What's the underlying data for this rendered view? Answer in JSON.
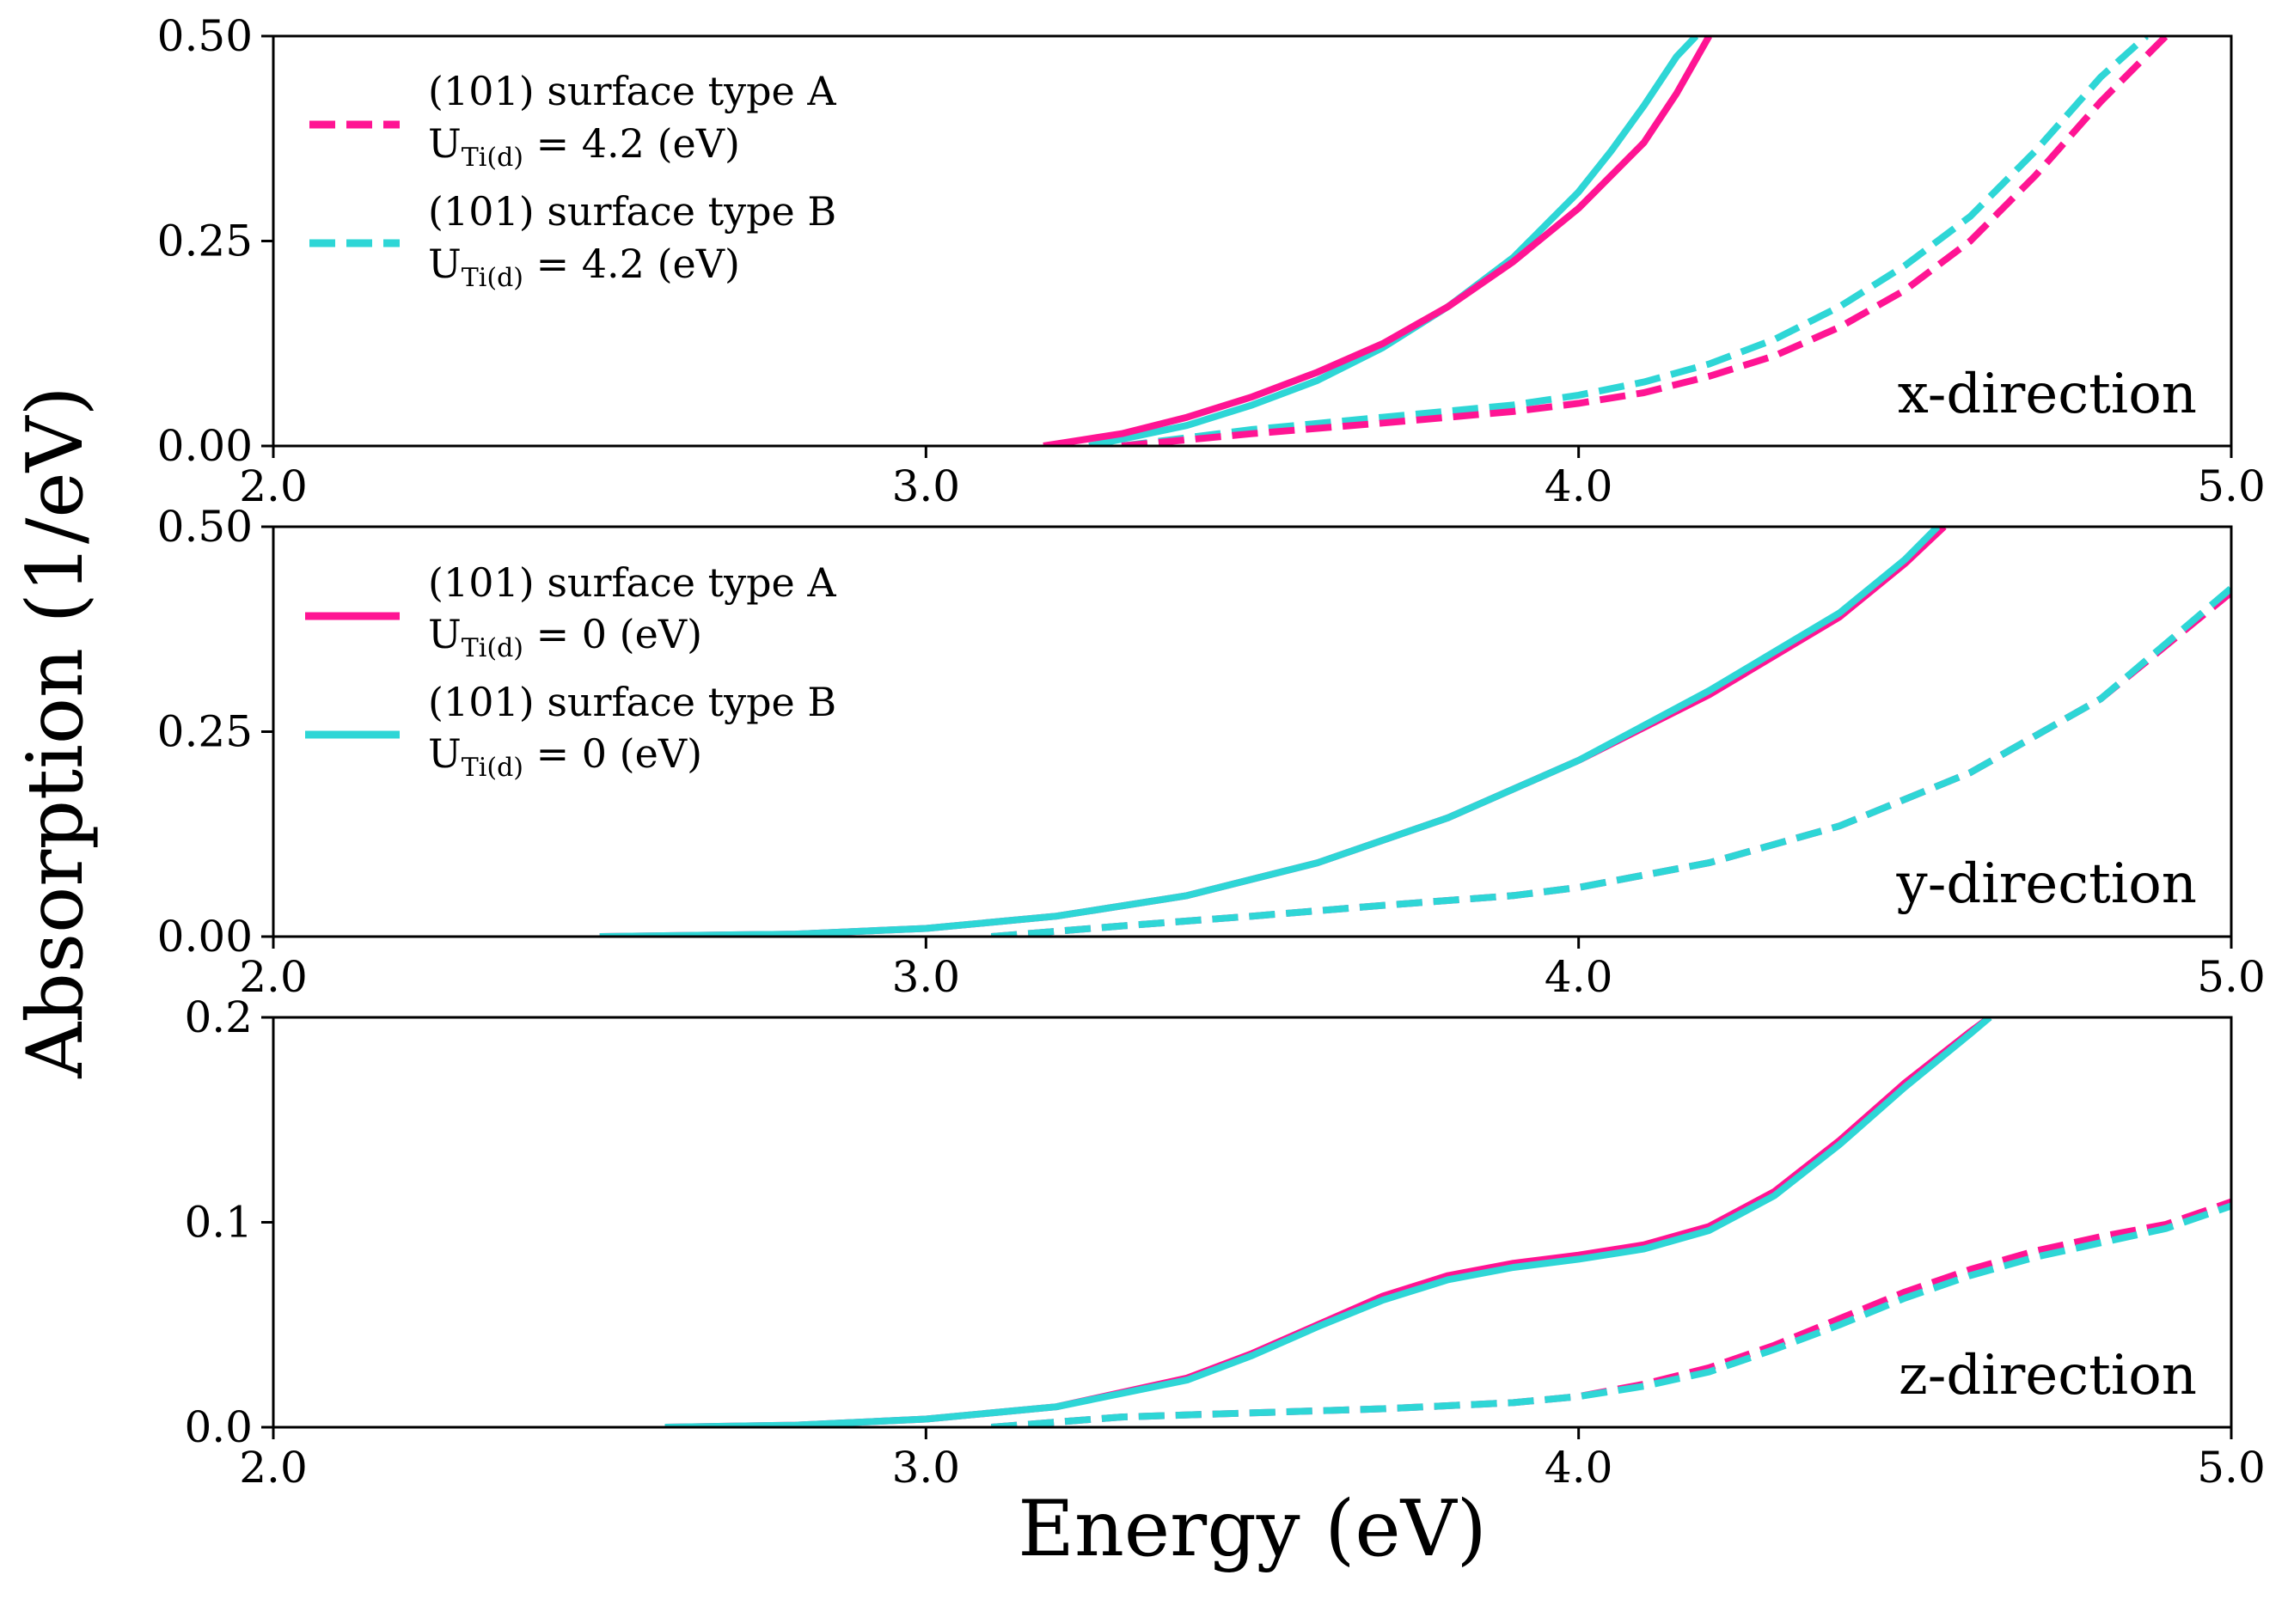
{
  "chart_data": {
    "type": "line",
    "xlabel": "Energy (eV)",
    "ylabel": "Absorption (1/eV)",
    "xlim": [
      2.0,
      5.0
    ],
    "xticks": [
      "2.0",
      "3.0",
      "4.0",
      "5.0"
    ],
    "colors": {
      "type_A": "#ff1493",
      "type_B": "#2ed6d6"
    },
    "legend_dashed": [
      {
        "line1": "(101) surface type A",
        "line2_pre": "U",
        "line2_sub": "Ti(d)",
        "line2_post": " = 4.2 (eV)",
        "color": "#ff1493",
        "style": "dashed"
      },
      {
        "line1": "(101) surface type B",
        "line2_pre": "U",
        "line2_sub": "Ti(d)",
        "line2_post": " = 4.2 (eV)",
        "color": "#2ed6d6",
        "style": "dashed"
      }
    ],
    "legend_solid": [
      {
        "line1": "(101) surface type A",
        "line2_pre": "U",
        "line2_sub": "Ti(d)",
        "line2_post": " = 0 (eV)",
        "color": "#ff1493",
        "style": "solid"
      },
      {
        "line1": "(101) surface type B",
        "line2_pre": "U",
        "line2_sub": "Ti(d)",
        "line2_post": " = 0 (eV)",
        "color": "#2ed6d6",
        "style": "solid"
      }
    ],
    "panels": [
      {
        "annotation": "x-direction",
        "ylim": [
          0,
          0.5
        ],
        "yticks": [
          "0.00",
          "0.25",
          "0.50"
        ],
        "series": [
          {
            "surface": "B",
            "U": 0,
            "style": "solid",
            "color": "#2ed6d6",
            "x": [
              3.25,
              3.4,
              3.5,
              3.6,
              3.7,
              3.8,
              3.9,
              4.0,
              4.05,
              4.1,
              4.15,
              4.18
            ],
            "y": [
              0.0,
              0.025,
              0.05,
              0.08,
              0.12,
              0.17,
              0.23,
              0.31,
              0.36,
              0.415,
              0.475,
              0.5
            ]
          },
          {
            "surface": "A",
            "U": 0,
            "style": "solid",
            "color": "#ff1493",
            "x": [
              3.18,
              3.3,
              3.4,
              3.5,
              3.6,
              3.7,
              3.8,
              3.9,
              4.0,
              4.1,
              4.15,
              4.2
            ],
            "y": [
              0.0,
              0.015,
              0.035,
              0.06,
              0.09,
              0.125,
              0.17,
              0.225,
              0.29,
              0.37,
              0.43,
              0.5
            ]
          },
          {
            "surface": "B",
            "U": 4.2,
            "style": "dashed",
            "color": "#2ed6d6",
            "x": [
              3.3,
              3.5,
              3.7,
              3.9,
              4.0,
              4.1,
              4.2,
              4.3,
              4.4,
              4.5,
              4.6,
              4.7,
              4.8,
              4.87
            ],
            "y": [
              0.0,
              0.02,
              0.035,
              0.05,
              0.062,
              0.078,
              0.1,
              0.13,
              0.17,
              0.22,
              0.28,
              0.36,
              0.45,
              0.5
            ]
          },
          {
            "surface": "A",
            "U": 4.2,
            "style": "dashed",
            "color": "#ff1493",
            "x": [
              3.3,
              3.5,
              3.7,
              3.9,
              4.0,
              4.1,
              4.2,
              4.3,
              4.4,
              4.5,
              4.6,
              4.7,
              4.8,
              4.9
            ],
            "y": [
              0.0,
              0.015,
              0.028,
              0.042,
              0.052,
              0.065,
              0.085,
              0.11,
              0.145,
              0.19,
              0.25,
              0.33,
              0.42,
              0.5
            ]
          }
        ]
      },
      {
        "annotation": "y-direction",
        "ylim": [
          0,
          0.5
        ],
        "yticks": [
          "0.00",
          "0.25",
          "0.50"
        ],
        "series": [
          {
            "surface": "A",
            "U": 0,
            "style": "solid",
            "color": "#ff1493",
            "x": [
              2.5,
              2.8,
              3.0,
              3.2,
              3.4,
              3.6,
              3.8,
              4.0,
              4.2,
              4.4,
              4.5,
              4.56
            ],
            "y": [
              0.0,
              0.003,
              0.01,
              0.025,
              0.05,
              0.09,
              0.145,
              0.215,
              0.295,
              0.39,
              0.455,
              0.5
            ]
          },
          {
            "surface": "B",
            "U": 0,
            "style": "solid",
            "color": "#2ed6d6",
            "x": [
              2.5,
              2.8,
              3.0,
              3.2,
              3.4,
              3.6,
              3.8,
              4.0,
              4.2,
              4.4,
              4.5,
              4.55
            ],
            "y": [
              0.0,
              0.003,
              0.01,
              0.025,
              0.05,
              0.09,
              0.145,
              0.215,
              0.3,
              0.395,
              0.46,
              0.5
            ]
          },
          {
            "surface": "A",
            "U": 4.2,
            "style": "dashed",
            "color": "#ff1493",
            "x": [
              3.1,
              3.3,
              3.5,
              3.7,
              3.9,
              4.0,
              4.2,
              4.4,
              4.6,
              4.8,
              5.0
            ],
            "y": [
              0.0,
              0.013,
              0.025,
              0.038,
              0.05,
              0.06,
              0.09,
              0.135,
              0.2,
              0.29,
              0.42
            ]
          },
          {
            "surface": "B",
            "U": 4.2,
            "style": "dashed",
            "color": "#2ed6d6",
            "x": [
              3.1,
              3.3,
              3.5,
              3.7,
              3.9,
              4.0,
              4.2,
              4.4,
              4.6,
              4.8,
              5.0
            ],
            "y": [
              0.0,
              0.013,
              0.025,
              0.038,
              0.05,
              0.06,
              0.09,
              0.135,
              0.2,
              0.29,
              0.425
            ]
          }
        ]
      },
      {
        "annotation": "z-direction",
        "ylim": [
          0,
          0.2
        ],
        "yticks": [
          "0.0",
          "0.1",
          "0.2"
        ],
        "series": [
          {
            "surface": "A",
            "U": 0,
            "style": "solid",
            "color": "#ff1493",
            "x": [
              2.6,
              2.8,
              3.0,
              3.2,
              3.4,
              3.5,
              3.6,
              3.7,
              3.8,
              3.9,
              4.0,
              4.1,
              4.2,
              4.3,
              4.4,
              4.5,
              4.6,
              4.63
            ],
            "y": [
              0.0,
              0.001,
              0.004,
              0.01,
              0.024,
              0.036,
              0.05,
              0.064,
              0.074,
              0.08,
              0.084,
              0.089,
              0.098,
              0.115,
              0.14,
              0.168,
              0.193,
              0.2
            ]
          },
          {
            "surface": "B",
            "U": 0,
            "style": "solid",
            "color": "#2ed6d6",
            "x": [
              2.6,
              2.8,
              3.0,
              3.2,
              3.4,
              3.5,
              3.6,
              3.7,
              3.8,
              3.9,
              4.0,
              4.1,
              4.2,
              4.3,
              4.4,
              4.5,
              4.6,
              4.63
            ],
            "y": [
              0.0,
              0.001,
              0.004,
              0.01,
              0.023,
              0.035,
              0.049,
              0.062,
              0.072,
              0.078,
              0.082,
              0.087,
              0.096,
              0.113,
              0.138,
              0.166,
              0.192,
              0.2
            ]
          },
          {
            "surface": "A",
            "U": 4.2,
            "style": "dashed",
            "color": "#ff1493",
            "x": [
              3.1,
              3.3,
              3.5,
              3.7,
              3.9,
              4.0,
              4.1,
              4.2,
              4.3,
              4.4,
              4.5,
              4.6,
              4.7,
              4.8,
              4.9,
              5.0
            ],
            "y": [
              0.0,
              0.005,
              0.007,
              0.009,
              0.012,
              0.015,
              0.021,
              0.029,
              0.04,
              0.053,
              0.066,
              0.077,
              0.086,
              0.093,
              0.099,
              0.11
            ]
          },
          {
            "surface": "B",
            "U": 4.2,
            "style": "dashed",
            "color": "#2ed6d6",
            "x": [
              3.1,
              3.3,
              3.5,
              3.7,
              3.9,
              4.0,
              4.1,
              4.2,
              4.3,
              4.4,
              4.5,
              4.6,
              4.7,
              4.8,
              4.9,
              5.0
            ],
            "y": [
              0.0,
              0.005,
              0.007,
              0.009,
              0.012,
              0.015,
              0.02,
              0.027,
              0.038,
              0.05,
              0.063,
              0.074,
              0.083,
              0.09,
              0.097,
              0.108
            ]
          }
        ]
      }
    ]
  }
}
